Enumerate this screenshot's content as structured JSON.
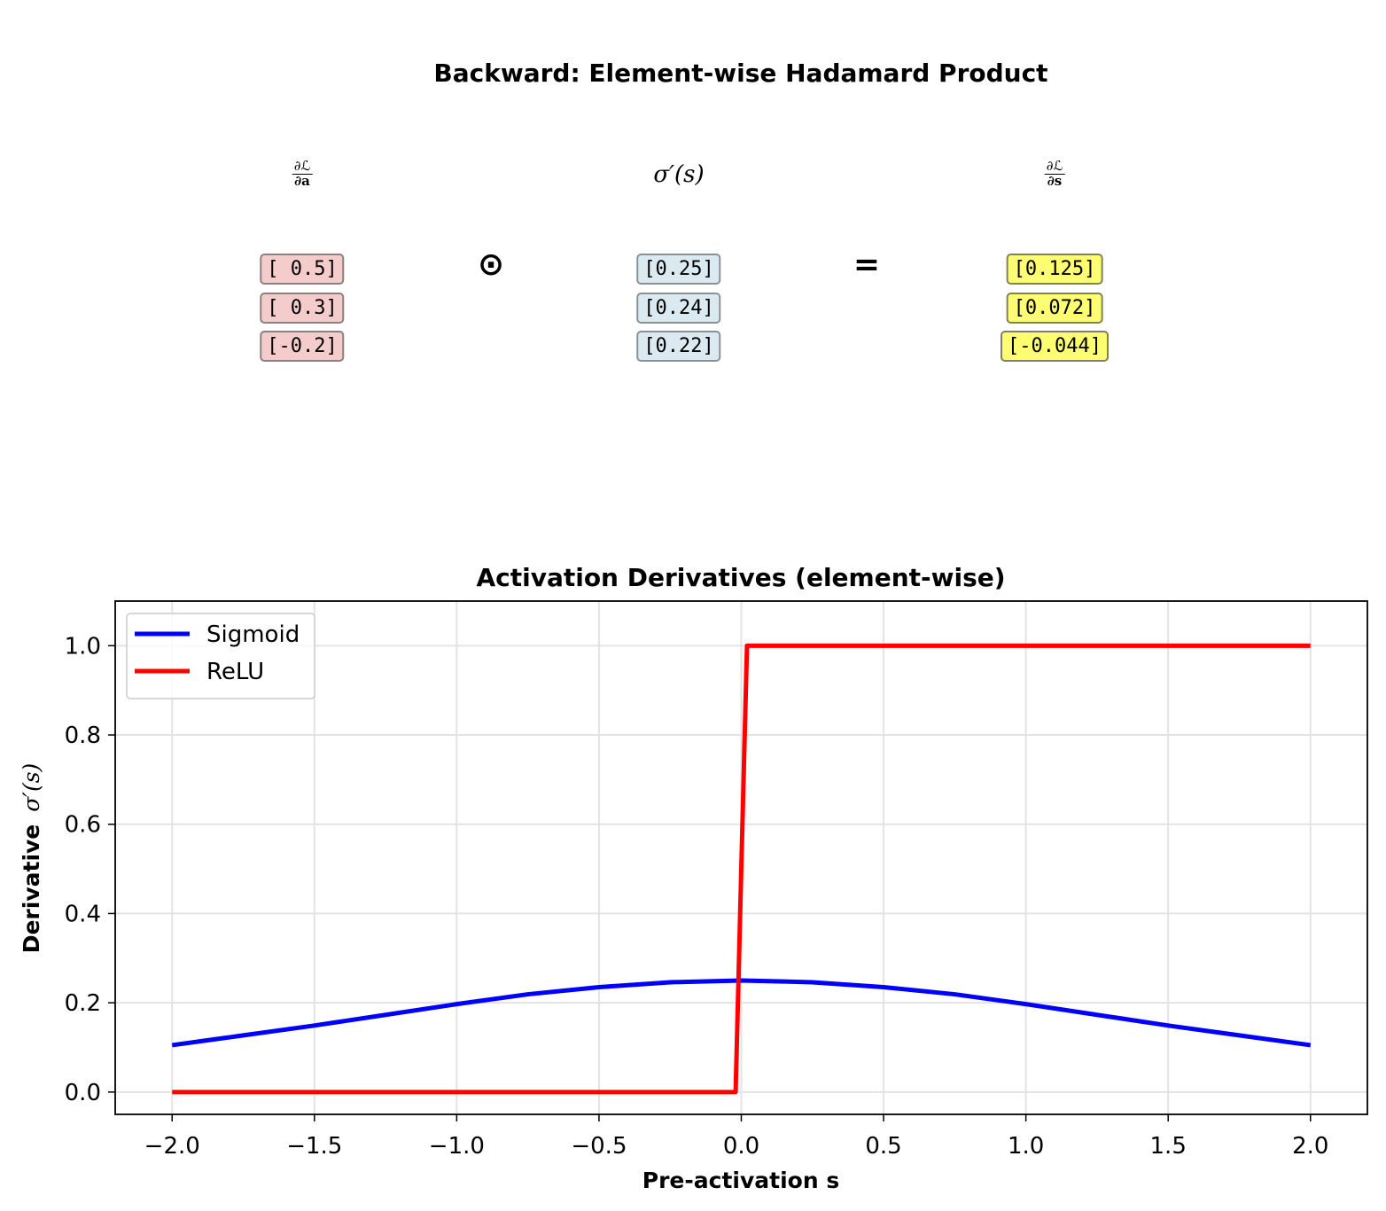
{
  "top_panel": {
    "title": "Backward: Element-wise Hadamard Product",
    "headers": {
      "left_num": "∂ℒ",
      "left_den": "∂a",
      "mid": "σ′(s)",
      "right_num": "∂ℒ",
      "right_den": "∂s"
    },
    "operator_hadamard": "⊙",
    "operator_equals": "=",
    "vector_dl_da": [
      "[ 0.5]",
      "[ 0.3]",
      "[-0.2]"
    ],
    "vector_sigma_prime": [
      "[0.25]",
      "[0.24]",
      "[0.22]"
    ],
    "vector_dl_ds": [
      "[0.125]",
      "[0.072]",
      "[-0.044]"
    ],
    "colors": {
      "dl_da_fill": "#f5cccc",
      "sigma_prime_fill": "#dbeaf0",
      "dl_ds_fill": "#fdfd72",
      "cell_border": "#888888"
    }
  },
  "chart_data": {
    "type": "line",
    "title": "Activation Derivatives (element-wise)",
    "xlabel": "Pre-activation s",
    "ylabel_prefix": "Derivative",
    "ylabel_math": "σ′(s)",
    "xlim": [
      -2.2,
      2.2
    ],
    "ylim": [
      -0.05,
      1.1
    ],
    "xticks": [
      -2.0,
      -1.5,
      -1.0,
      -0.5,
      0.0,
      0.5,
      1.0,
      1.5,
      2.0
    ],
    "xtick_labels": [
      "−2.0",
      "−1.5",
      "−1.0",
      "−0.5",
      "0.0",
      "0.5",
      "1.0",
      "1.5",
      "2.0"
    ],
    "yticks": [
      0.0,
      0.2,
      0.4,
      0.6,
      0.8,
      1.0
    ],
    "ytick_labels": [
      "0.0",
      "0.2",
      "0.4",
      "0.6",
      "0.8",
      "1.0"
    ],
    "grid": true,
    "legend_position": "upper-left",
    "series": [
      {
        "name": "Sigmoid",
        "color": "#0000ff",
        "x": [
          -2.0,
          -1.75,
          -1.5,
          -1.25,
          -1.0,
          -0.75,
          -0.5,
          -0.25,
          0.0,
          0.25,
          0.5,
          0.75,
          1.0,
          1.25,
          1.5,
          1.75,
          2.0
        ],
        "y": [
          0.105,
          0.127,
          0.149,
          0.173,
          0.197,
          0.219,
          0.235,
          0.246,
          0.25,
          0.246,
          0.235,
          0.219,
          0.197,
          0.173,
          0.149,
          0.127,
          0.105
        ]
      },
      {
        "name": "ReLU",
        "color": "#ff0000",
        "x": [
          -2.0,
          -0.02,
          0.02,
          2.0
        ],
        "y": [
          0.0,
          0.0,
          1.0,
          1.0
        ]
      }
    ]
  }
}
